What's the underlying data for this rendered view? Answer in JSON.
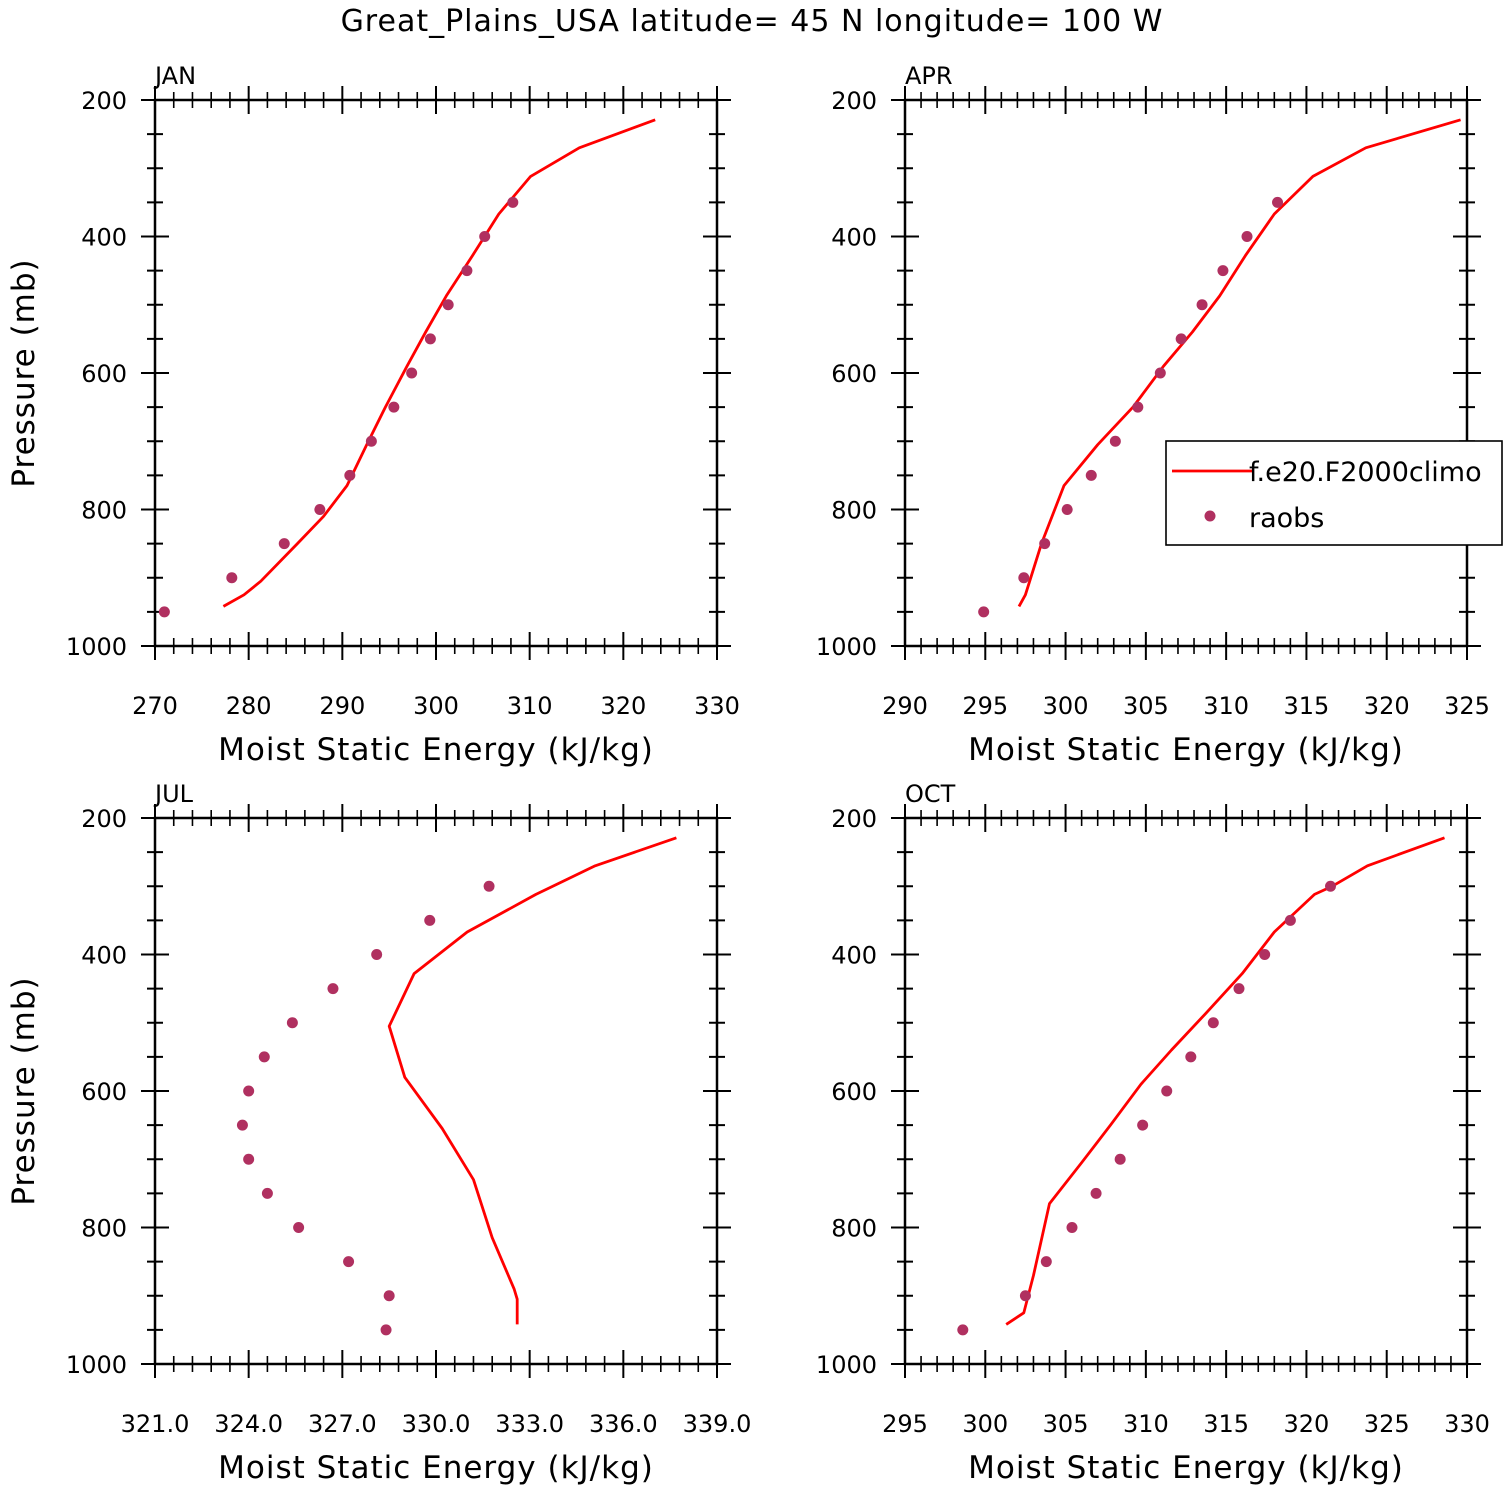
{
  "title": "Great_Plains_USA  latitude= 45 N longitude= 100 W",
  "colors": {
    "model": "#ff0000",
    "obs": "#b03060",
    "axis": "#000000"
  },
  "legend": {
    "entries": [
      "f.e20.F2000climo",
      "raobs"
    ],
    "placement": "right, APR panel"
  },
  "chart_data": [
    {
      "type": "line",
      "panel_label": "JAN",
      "xlabel": "Moist Static Energy (kJ/kg)",
      "ylabel": "Pressure (mb)",
      "xlim": [
        270,
        330
      ],
      "xticks": [
        270,
        280,
        290,
        300,
        310,
        320,
        330
      ],
      "xtick_decimals": 0,
      "ylim": [
        200,
        1000
      ],
      "yticks": [
        200,
        400,
        600,
        800,
        1000
      ],
      "series": [
        {
          "name": "f.e20.F2000climo",
          "kind": "line",
          "x": [
            323.4,
            315.3,
            310.1,
            306.7,
            303.9,
            301.1,
            298.9,
            296.9,
            294.6,
            292.6,
            290.5,
            288.0,
            285.2,
            281.3,
            279.5,
            277.3
          ],
          "y": [
            229,
            270,
            312,
            367,
            428,
            487,
            540,
            590,
            650,
            705,
            765,
            810,
            850,
            905,
            925,
            942
          ]
        },
        {
          "name": "raobs",
          "kind": "points",
          "x": [
            308.2,
            305.2,
            303.3,
            301.3,
            299.4,
            297.4,
            295.5,
            293.1,
            290.8,
            287.6,
            283.8,
            278.2,
            271.0
          ],
          "y": [
            350,
            400,
            450,
            500,
            550,
            600,
            650,
            700,
            750,
            800,
            850,
            900,
            950
          ]
        }
      ]
    },
    {
      "type": "line",
      "panel_label": "APR",
      "xlabel": "Moist Static Energy (kJ/kg)",
      "ylabel": "",
      "xlim": [
        290,
        325
      ],
      "xticks": [
        290,
        295,
        300,
        305,
        310,
        315,
        320,
        325
      ],
      "xtick_decimals": 0,
      "ylim": [
        200,
        1000
      ],
      "yticks": [
        200,
        400,
        600,
        800,
        1000
      ],
      "series": [
        {
          "name": "f.e20.F2000climo",
          "kind": "line",
          "x": [
            324.6,
            318.7,
            315.4,
            313.0,
            311.2,
            309.6,
            307.9,
            306.1,
            304.2,
            302.0,
            299.9,
            298.5,
            297.5,
            297.1
          ],
          "y": [
            229,
            270,
            312,
            367,
            428,
            487,
            540,
            590,
            650,
            705,
            765,
            850,
            925,
            942
          ]
        },
        {
          "name": "raobs",
          "kind": "points",
          "x": [
            313.2,
            311.3,
            309.8,
            308.5,
            307.2,
            305.9,
            304.5,
            303.1,
            301.6,
            300.1,
            298.7,
            297.4,
            294.9
          ],
          "y": [
            350,
            400,
            450,
            500,
            550,
            600,
            650,
            700,
            750,
            800,
            850,
            900,
            950
          ]
        }
      ]
    },
    {
      "type": "line",
      "panel_label": "JUL",
      "xlabel": "Moist Static Energy (kJ/kg)",
      "ylabel": "Pressure (mb)",
      "xlim": [
        321,
        339
      ],
      "xticks": [
        321,
        324,
        327,
        330,
        333,
        336,
        339
      ],
      "xtick_decimals": 1,
      "ylim": [
        200,
        1000
      ],
      "yticks": [
        200,
        400,
        600,
        800,
        1000
      ],
      "series": [
        {
          "name": "f.e20.F2000climo",
          "kind": "line",
          "x": [
            337.7,
            335.1,
            333.2,
            331.0,
            329.3,
            328.5,
            329.0,
            330.2,
            331.2,
            331.8,
            332.5,
            332.6,
            332.6
          ],
          "y": [
            229,
            270,
            312,
            367,
            428,
            505,
            580,
            655,
            730,
            815,
            890,
            905,
            942
          ]
        },
        {
          "name": "raobs",
          "kind": "points",
          "x": [
            331.7,
            329.8,
            328.1,
            326.7,
            325.4,
            324.5,
            324.0,
            323.8,
            324.0,
            324.6,
            325.6,
            327.2,
            328.5,
            328.4
          ],
          "y": [
            300,
            350,
            400,
            450,
            500,
            550,
            600,
            650,
            700,
            750,
            800,
            850,
            900,
            950
          ]
        }
      ]
    },
    {
      "type": "line",
      "panel_label": "OCT",
      "xlabel": "Moist Static Energy (kJ/kg)",
      "ylabel": "",
      "xlim": [
        295,
        330
      ],
      "xticks": [
        295,
        300,
        305,
        310,
        315,
        320,
        325,
        330
      ],
      "xtick_decimals": 0,
      "ylim": [
        200,
        1000
      ],
      "yticks": [
        200,
        400,
        600,
        800,
        1000
      ],
      "series": [
        {
          "name": "f.e20.F2000climo",
          "kind": "line",
          "x": [
            328.6,
            323.8,
            321.6,
            320.5,
            318.0,
            316.0,
            313.7,
            311.6,
            309.7,
            307.8,
            306.0,
            304.0,
            303.0,
            302.4,
            301.3
          ],
          "y": [
            229,
            270,
            300,
            312,
            367,
            428,
            487,
            540,
            590,
            650,
            705,
            765,
            870,
            925,
            942
          ]
        },
        {
          "name": "raobs",
          "kind": "points",
          "x": [
            321.5,
            319.0,
            317.4,
            315.8,
            314.2,
            312.8,
            311.3,
            309.8,
            308.4,
            306.9,
            305.4,
            303.8,
            302.5,
            298.6
          ],
          "y": [
            300,
            350,
            400,
            450,
            500,
            550,
            600,
            650,
            700,
            750,
            800,
            850,
            900,
            950
          ]
        }
      ]
    }
  ]
}
